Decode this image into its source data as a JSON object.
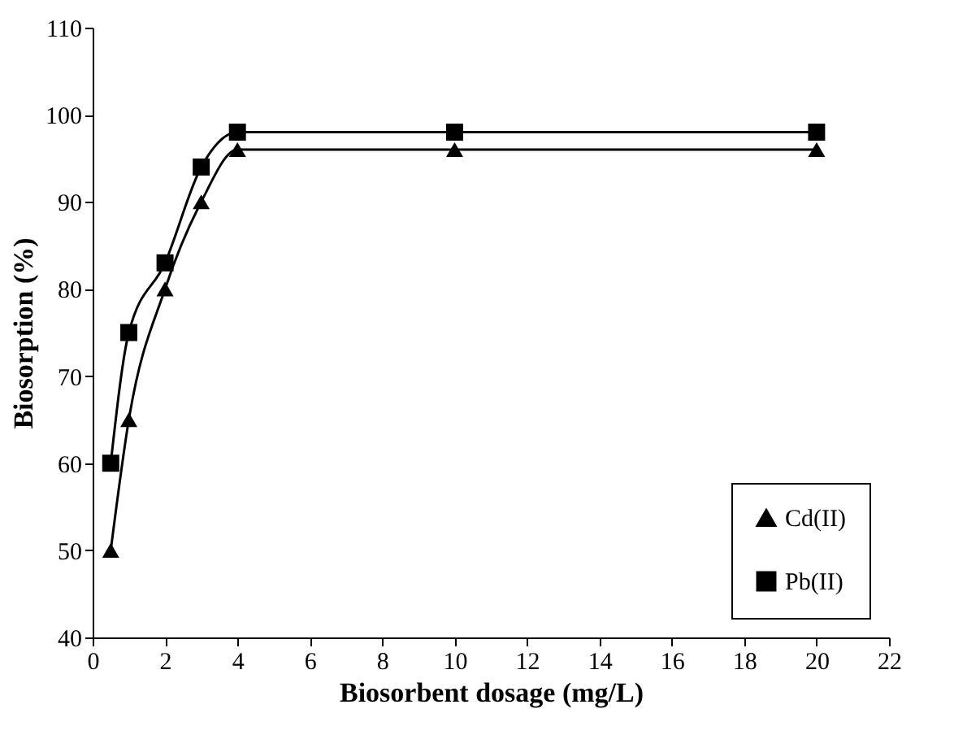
{
  "chart_data": {
    "type": "line",
    "xlabel": "Biosorbent dosage (mg/L)",
    "ylabel": "Biosorption (%)",
    "x": [
      0.5,
      1,
      2,
      3,
      4,
      10,
      20
    ],
    "series": [
      {
        "name": "Cd(II)",
        "color": "#000000",
        "marker": "triangle",
        "values": [
          50,
          65,
          80,
          90,
          96,
          96,
          96
        ]
      },
      {
        "name": "Pb(II)",
        "color": "#000000",
        "marker": "square",
        "values": [
          60,
          75,
          83,
          94,
          98,
          98,
          98
        ]
      }
    ],
    "xlim": [
      0,
      22
    ],
    "xticks": [
      0,
      2,
      4,
      6,
      8,
      10,
      12,
      14,
      16,
      18,
      20,
      22
    ],
    "ylim": [
      40,
      110
    ],
    "yticks": [
      40,
      50,
      60,
      70,
      80,
      90,
      100,
      110
    ],
    "grid": false,
    "legend": "bottom right",
    "line_style": "solid"
  }
}
